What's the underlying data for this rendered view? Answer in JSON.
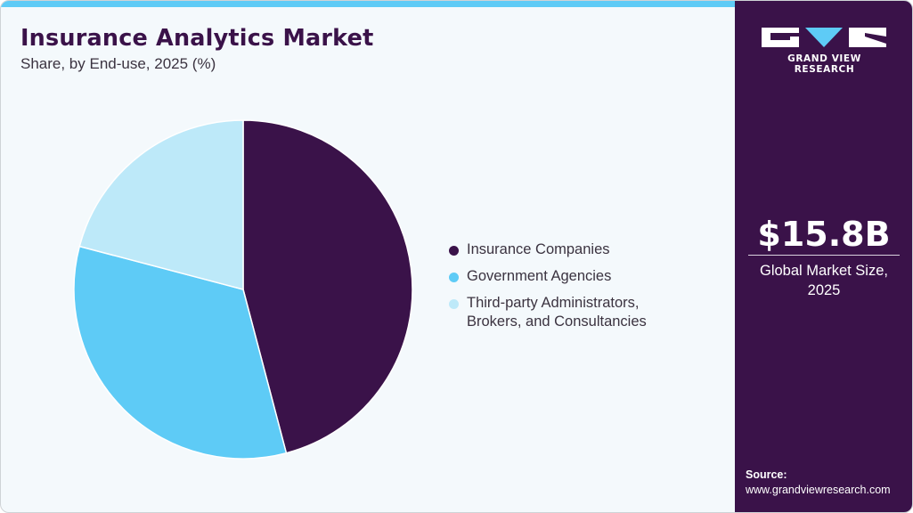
{
  "header": {
    "title": "Insurance Analytics Market",
    "subtitle": "Share, by End-use, 2025 (%)"
  },
  "legend": {
    "items": [
      {
        "label": "Insurance Companies",
        "color": "#3a1249"
      },
      {
        "label": "Government Agencies",
        "color": "#5ecbf6"
      },
      {
        "label": "Third-party Administrators, Brokers, and Consultancies",
        "label_line1": "Third-party Administrators,",
        "label_line2": "Brokers, and Consultancies",
        "color": "#bde9f9"
      }
    ]
  },
  "sidebar": {
    "logo_text": "GRAND VIEW RESEARCH",
    "market_value": "$15.8B",
    "market_label_line1": "Global Market Size,",
    "market_label_line2": "2025",
    "source_title": "Source:",
    "source_url": "www.grandviewresearch.com"
  },
  "colors": {
    "brand_dark": "#3a1249",
    "accent_blue": "#5ecbf6",
    "light_blue": "#bde9f9",
    "background": "#f4f9fc"
  },
  "chart_data": {
    "type": "pie",
    "title": "Insurance Analytics Market",
    "subtitle": "Share, by End-use, 2025 (%)",
    "categories": [
      "Insurance Companies",
      "Government Agencies",
      "Third-party Administrators, Brokers, and Consultancies"
    ],
    "values": [
      45.9,
      33.2,
      20.9
    ],
    "colors": [
      "#3a1249",
      "#5ecbf6",
      "#bde9f9"
    ],
    "start_angle_deg": 0,
    "direction": "clockwise",
    "legend_position": "right",
    "xlabel": "",
    "ylabel": ""
  }
}
